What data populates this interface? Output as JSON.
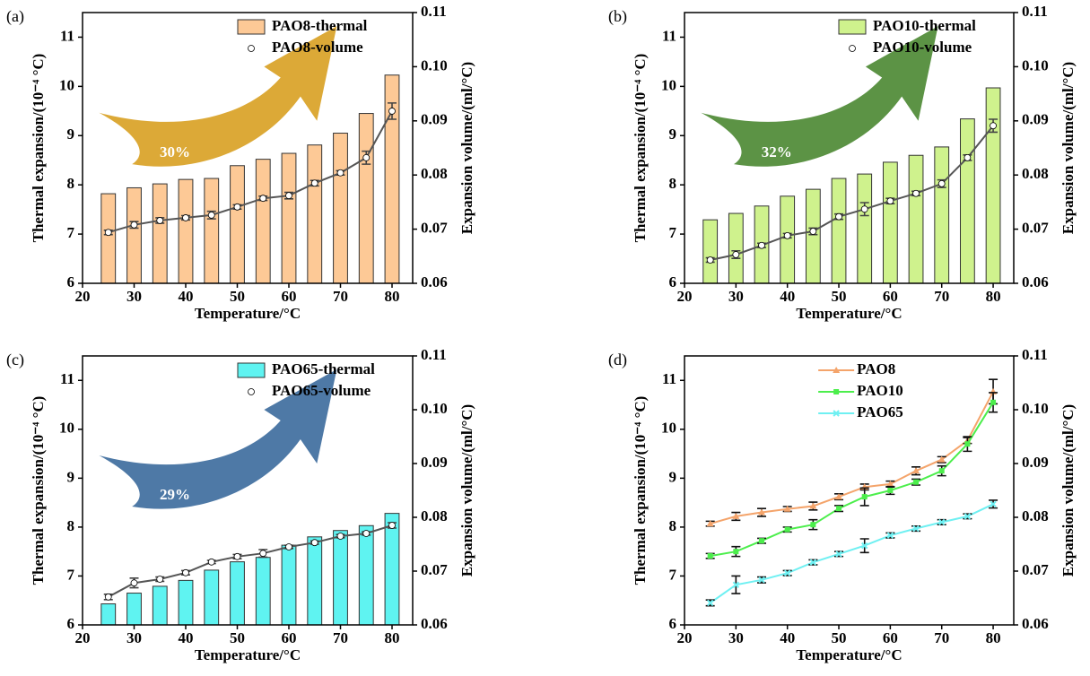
{
  "chart_data": [
    {
      "type": "bar",
      "panel_label": "(a)",
      "xlabel": "Temperature/°C",
      "ylabel": "Thermal expansion/(10⁻⁴ °C)",
      "y2label": "Expansion volume/(ml/°C)",
      "xlim": [
        20,
        84
      ],
      "xticks": [
        20,
        30,
        40,
        50,
        60,
        70,
        80
      ],
      "ylim": [
        6,
        11.5
      ],
      "yticks": [
        6,
        7,
        8,
        9,
        10,
        11
      ],
      "y2lim": [
        0.06,
        0.11
      ],
      "y2ticks": [
        0.06,
        0.07,
        0.08,
        0.09,
        {
          "value": 0.1,
          "label": "0.10"
        },
        0.11
      ],
      "x": [
        25,
        30,
        35,
        40,
        45,
        50,
        55,
        60,
        65,
        70,
        75,
        80
      ],
      "legend": "upper right",
      "annotation": {
        "text": "30%",
        "color": "#d9a226"
      },
      "series": [
        {
          "name": "PAO8-thermal",
          "type": "bar",
          "color": "#fdc996",
          "values": [
            7.82,
            7.94,
            8.02,
            8.11,
            8.13,
            8.39,
            8.52,
            8.64,
            8.81,
            9.05,
            9.45,
            10.23
          ]
        },
        {
          "name": "PAO8-volume",
          "type": "line",
          "axis": "y2",
          "color": "#555555",
          "values": [
            0.0694,
            0.0708,
            0.0716,
            0.0721,
            0.0726,
            0.0741,
            0.0757,
            0.0762,
            0.0785,
            0.0804,
            0.0832,
            0.0918
          ],
          "errors": [
            0.0004,
            0.0006,
            0.0005,
            0.0004,
            0.0007,
            0.0004,
            0.0004,
            0.0006,
            0.0005,
            0.0004,
            0.0012,
            0.0015
          ]
        }
      ]
    },
    {
      "type": "bar",
      "panel_label": "(b)",
      "xlabel": "Temperature/°C",
      "ylabel": "Thermal expansion/(10⁻⁴ °C)",
      "y2label": "Expansion volume/(ml/°C)",
      "xlim": [
        20,
        84
      ],
      "xticks": [
        20,
        30,
        40,
        50,
        60,
        70,
        80
      ],
      "ylim": [
        6,
        11.5
      ],
      "yticks": [
        6,
        7,
        8,
        9,
        10,
        11
      ],
      "y2lim": [
        0.06,
        0.11
      ],
      "y2ticks": [
        0.06,
        0.07,
        0.08,
        0.09,
        {
          "value": 0.1,
          "label": "0.10"
        },
        0.11
      ],
      "x": [
        25,
        30,
        35,
        40,
        45,
        50,
        55,
        60,
        65,
        70,
        75,
        80
      ],
      "legend": "upper right",
      "annotation": {
        "text": "32%",
        "color": "#4e8a35"
      },
      "series": [
        {
          "name": "PAO10-thermal",
          "type": "bar",
          "color": "#cff28d",
          "values": [
            7.29,
            7.42,
            7.57,
            7.77,
            7.91,
            8.13,
            8.22,
            8.46,
            8.6,
            8.77,
            9.34,
            9.97
          ]
        },
        {
          "name": "PAO10-volume",
          "type": "line",
          "axis": "y2",
          "color": "#555555",
          "values": [
            0.0643,
            0.0653,
            0.067,
            0.0688,
            0.0696,
            0.0723,
            0.0737,
            0.0752,
            0.0766,
            0.0784,
            0.0832,
            0.0891
          ],
          "errors": [
            0.0004,
            0.0007,
            0.0004,
            0.0004,
            0.0006,
            0.0005,
            0.0012,
            0.0005,
            0.0004,
            0.0007,
            0.0005,
            0.0012
          ]
        }
      ]
    },
    {
      "type": "bar",
      "panel_label": "(c)",
      "xlabel": "Temperature/°C",
      "ylabel": "Thermal expansion/(10⁻⁴ °C)",
      "y2label": "Expansion volume/(ml/°C)",
      "xlim": [
        20,
        84
      ],
      "xticks": [
        20,
        30,
        40,
        50,
        60,
        70,
        80
      ],
      "ylim": [
        6,
        11.5
      ],
      "yticks": [
        6,
        7,
        8,
        9,
        10,
        11
      ],
      "y2lim": [
        0.06,
        0.11
      ],
      "y2ticks": [
        0.06,
        0.07,
        0.08,
        0.09,
        {
          "value": 0.1,
          "label": "0.10"
        },
        0.11
      ],
      "x": [
        25,
        30,
        35,
        40,
        45,
        50,
        55,
        60,
        65,
        70,
        75,
        80
      ],
      "legend": "upper right",
      "annotation": {
        "text": "29%",
        "color": "#3f6e9e"
      },
      "series": [
        {
          "name": "PAO65-thermal",
          "type": "bar",
          "color": "#5ff3f1",
          "values": [
            6.43,
            6.65,
            6.79,
            6.91,
            7.12,
            7.29,
            7.38,
            7.63,
            7.8,
            7.93,
            8.03,
            8.28
          ]
        },
        {
          "name": "PAO65-volume",
          "type": "line",
          "axis": "y2",
          "color": "#555555",
          "values": [
            0.0652,
            0.0678,
            0.0685,
            0.0697,
            0.0717,
            0.0727,
            0.0733,
            0.0745,
            0.0753,
            0.0765,
            0.077,
            0.0785
          ],
          "errors": [
            0.0005,
            0.0009,
            0.0004,
            0.0004,
            0.0003,
            0.0004,
            0.0007,
            0.0003,
            0.0003,
            0.0003,
            0.0003,
            0.0005
          ]
        }
      ]
    },
    {
      "type": "line",
      "panel_label": "(d)",
      "xlabel": "Temperature/°C",
      "ylabel": "Thermal expansion/(10⁻⁴ °C)",
      "y2label": "Expansion volume/(ml/°C)",
      "xlim": [
        20,
        84
      ],
      "xticks": [
        20,
        30,
        40,
        50,
        60,
        70,
        80
      ],
      "ylim": [
        6,
        11.5
      ],
      "yticks": [
        6,
        7,
        8,
        9,
        10,
        11
      ],
      "y2lim": [
        0.06,
        0.11
      ],
      "y2ticks": [
        0.06,
        0.07,
        0.08,
        0.09,
        {
          "value": 0.1,
          "label": "0.10"
        },
        0.11
      ],
      "x": [
        25,
        30,
        35,
        40,
        45,
        50,
        55,
        60,
        65,
        70,
        75,
        80
      ],
      "legend": "upper center",
      "series": [
        {
          "name": "PAO8",
          "type": "line",
          "marker": "triangle",
          "color": "#f4a46b",
          "values": [
            8.07,
            8.22,
            8.3,
            8.37,
            8.43,
            8.62,
            8.82,
            8.88,
            9.15,
            9.38,
            9.77,
            10.77
          ],
          "errors": [
            0.05,
            0.08,
            0.08,
            0.05,
            0.08,
            0.06,
            0.06,
            0.06,
            0.08,
            0.06,
            0.06,
            0.25
          ]
        },
        {
          "name": "PAO10",
          "type": "line",
          "marker": "square",
          "color": "#4cee4c",
          "values": [
            7.41,
            7.5,
            7.72,
            7.95,
            8.05,
            8.38,
            8.62,
            8.75,
            8.92,
            9.15,
            9.7,
            10.55
          ],
          "errors": [
            0.05,
            0.1,
            0.05,
            0.05,
            0.1,
            0.06,
            0.18,
            0.08,
            0.06,
            0.1,
            0.15,
            0.2
          ]
        },
        {
          "name": "PAO65",
          "type": "line",
          "marker": "cross",
          "color": "#6ff0f2",
          "values": [
            6.45,
            6.82,
            6.92,
            7.06,
            7.28,
            7.45,
            7.62,
            7.83,
            7.97,
            8.1,
            8.22,
            8.47
          ],
          "errors": [
            0.06,
            0.18,
            0.06,
            0.05,
            0.05,
            0.05,
            0.14,
            0.05,
            0.05,
            0.05,
            0.05,
            0.08
          ]
        }
      ]
    }
  ]
}
